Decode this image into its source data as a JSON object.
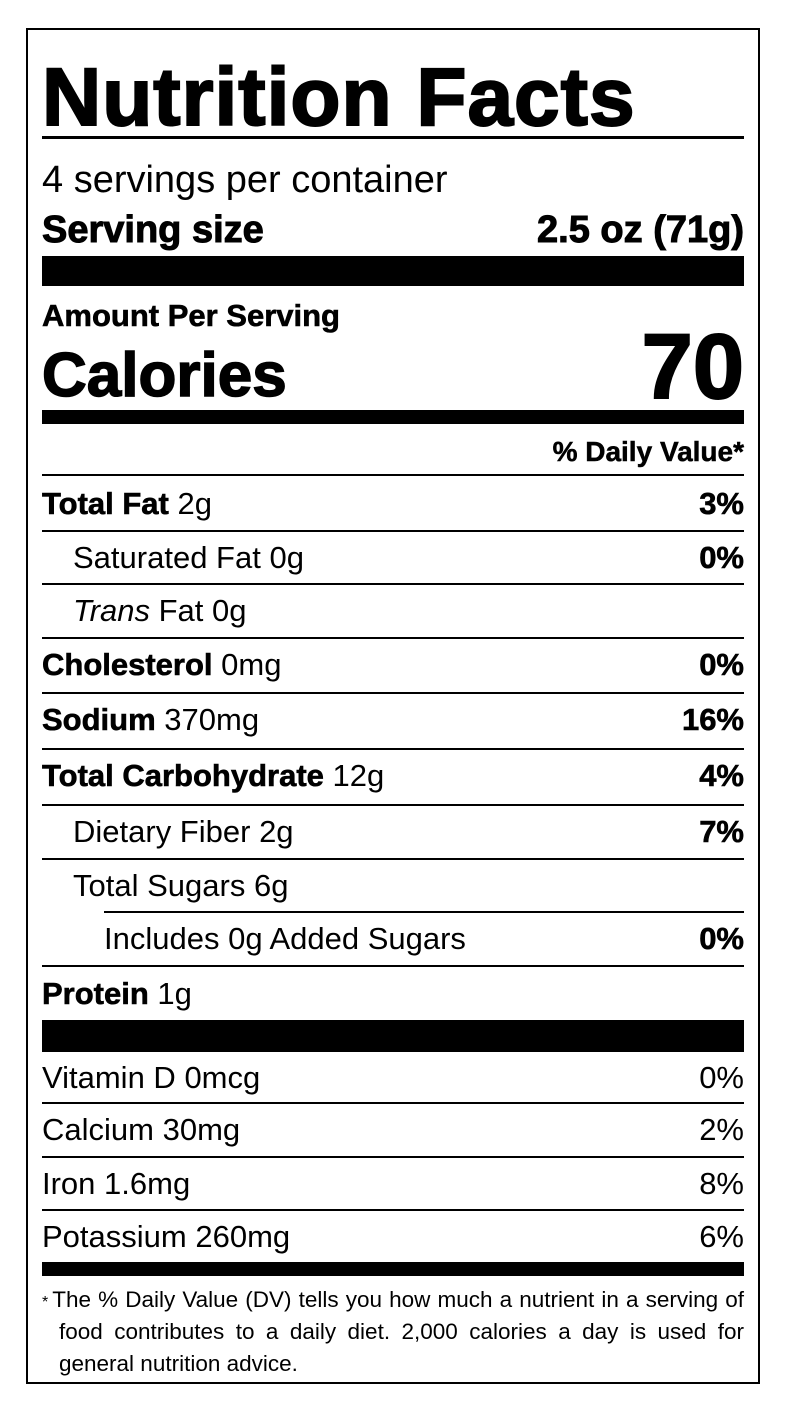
{
  "title": "Nutrition Facts",
  "servings_per_container": "4 servings per container",
  "serving_size": {
    "label": "Serving size",
    "value": "2.5 oz (71g)"
  },
  "amount_per_serving": "Amount Per Serving",
  "calories": {
    "label": "Calories",
    "value": "70"
  },
  "daily_value_header": "% Daily Value*",
  "nutrients": [
    {
      "name": "Total Fat",
      "amount": "2g",
      "dv": "3%"
    },
    {
      "name": "Saturated Fat",
      "amount": "0g",
      "dv": "0%"
    },
    {
      "name_italic": "Trans",
      "name": "Fat",
      "amount": "0g",
      "dv": ""
    },
    {
      "name": "Cholesterol",
      "amount": "0mg",
      "dv": "0%"
    },
    {
      "name": "Sodium",
      "amount": "370mg",
      "dv": "16%"
    },
    {
      "name": "Total Carbohydrate",
      "amount": "12g",
      "dv": "4%"
    },
    {
      "name": "Dietary Fiber",
      "amount": "2g",
      "dv": "7%"
    },
    {
      "name": "Total Sugars",
      "amount": "6g",
      "dv": ""
    },
    {
      "name": "Includes 0g Added Sugars",
      "amount": "",
      "dv": "0%"
    },
    {
      "name": "Protein",
      "amount": "1g",
      "dv": ""
    }
  ],
  "vitamins": [
    {
      "name": "Vitamin D",
      "amount": "0mcg",
      "dv": "0%"
    },
    {
      "name": "Calcium",
      "amount": "30mg",
      "dv": "2%"
    },
    {
      "name": "Iron",
      "amount": "1.6mg",
      "dv": "8%"
    },
    {
      "name": "Potassium",
      "amount": "260mg",
      "dv": "6%"
    }
  ],
  "footnote": {
    "marker": "*",
    "text": "The % Daily Value (DV) tells you how much a nutrient in a serving of food contributes to a daily diet. 2,000 calories a day is used for general nutrition advice."
  }
}
